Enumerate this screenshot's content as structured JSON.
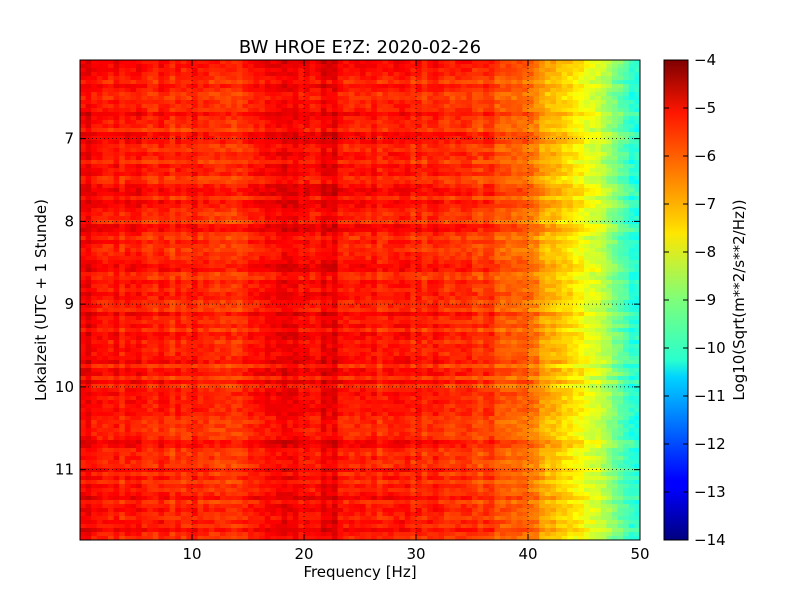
{
  "chart_data": {
    "type": "heatmap",
    "title": "BW HROE E?Z: 2020-02-26",
    "xlabel": "Frequency [Hz]",
    "ylabel": "Lokalzeit (UTC + 1 Stunde)",
    "xlim": [
      0,
      50
    ],
    "ylim": [
      11.85,
      6.05
    ],
    "x_ticks": [
      10,
      20,
      30,
      40,
      50
    ],
    "x_tick_labels": [
      "10",
      "20",
      "30",
      "40",
      "50"
    ],
    "y_ticks": [
      7,
      8,
      9,
      10,
      11
    ],
    "y_tick_labels": [
      "7",
      "8",
      "9",
      "10",
      "11"
    ],
    "grid": true,
    "colorbar": {
      "label": "Log10(Sqrt(m**2/s**2/Hz))",
      "range": [
        -14,
        -4
      ],
      "ticks": [
        -4,
        -5,
        -6,
        -7,
        -8,
        -9,
        -10,
        -11,
        -12,
        -13,
        -14
      ],
      "tick_labels": [
        "−4",
        "−5",
        "−6",
        "−7",
        "−8",
        "−9",
        "−10",
        "−11",
        "−12",
        "−13",
        "−14"
      ],
      "colormap": "jet"
    },
    "spectrum_profile": {
      "frequency_hz": [
        0,
        0.5,
        2,
        5,
        10,
        15,
        16.5,
        18,
        19.5,
        21,
        22,
        24,
        27,
        30,
        33,
        36,
        38,
        40,
        41,
        42,
        43,
        44,
        45,
        46,
        47,
        48,
        49,
        50
      ],
      "log10_amplitude": [
        -5.6,
        -5.1,
        -5.3,
        -5.5,
        -5.6,
        -5.6,
        -5.2,
        -5.1,
        -5.3,
        -5.3,
        -5.0,
        -5.4,
        -5.5,
        -5.5,
        -5.6,
        -5.8,
        -6.0,
        -6.4,
        -6.7,
        -7.0,
        -7.3,
        -7.6,
        -7.9,
        -8.2,
        -8.6,
        -9.0,
        -9.5,
        -10.0
      ]
    }
  },
  "colors": {
    "background": "#ffffff",
    "axes": "#000000",
    "grid": "#000000"
  }
}
